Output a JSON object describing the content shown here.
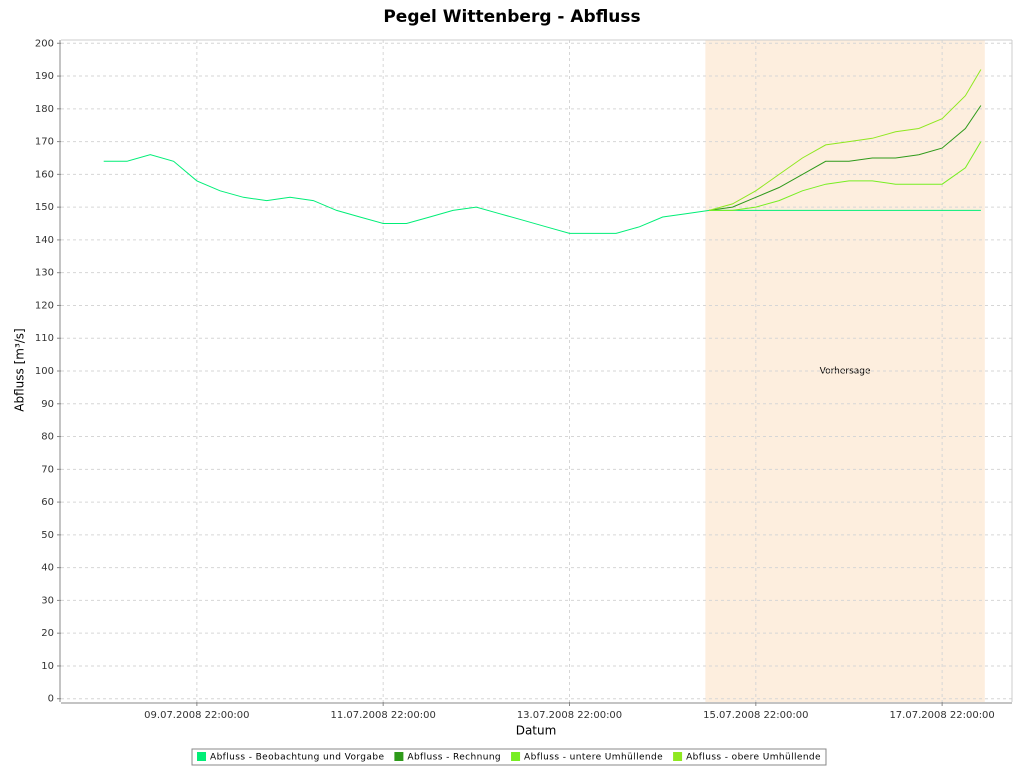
{
  "chart_data": {
    "type": "line",
    "title": "Pegel Wittenberg - Abfluss",
    "x_label": "Datum",
    "y_label": "Abfluss [m³/s]",
    "xlim": [
      "08.07.2008 11:00:00",
      "18.07.2008 16:00:00"
    ],
    "xticks": [
      "09.07.2008 22:00:00",
      "11.07.2008 22:00:00",
      "13.07.2008 22:00:00",
      "15.07.2008 22:00:00",
      "17.07.2008 22:00:00"
    ],
    "ylim": [
      -1,
      201
    ],
    "yticks": [
      0,
      10,
      20,
      30,
      40,
      50,
      60,
      70,
      80,
      90,
      100,
      110,
      120,
      130,
      140,
      150,
      160,
      170,
      180,
      190,
      200
    ],
    "grid": true,
    "legend": "bottom",
    "marker": {
      "label": "Vorhersage",
      "start": "15.07.2008 09:00:00",
      "end": "18.07.2008 09:00:00",
      "color": "#fdeede"
    },
    "series": [
      {
        "name": "Abfluss - Beobachtung und Vorgabe",
        "color": "#00ee77",
        "x": [
          "08.07.2008 22:00:00",
          "09.07.2008 04:00:00",
          "09.07.2008 10:00:00",
          "09.07.2008 16:00:00",
          "09.07.2008 22:00:00",
          "10.07.2008 04:00:00",
          "10.07.2008 10:00:00",
          "10.07.2008 16:00:00",
          "10.07.2008 22:00:00",
          "11.07.2008 04:00:00",
          "11.07.2008 10:00:00",
          "11.07.2008 16:00:00",
          "11.07.2008 22:00:00",
          "12.07.2008 04:00:00",
          "12.07.2008 10:00:00",
          "12.07.2008 16:00:00",
          "12.07.2008 22:00:00",
          "13.07.2008 04:00:00",
          "13.07.2008 10:00:00",
          "13.07.2008 16:00:00",
          "13.07.2008 22:00:00",
          "14.07.2008 04:00:00",
          "14.07.2008 10:00:00",
          "14.07.2008 16:00:00",
          "14.07.2008 22:00:00",
          "15.07.2008 04:00:00",
          "15.07.2008 10:00:00",
          "18.07.2008 08:00:00"
        ],
        "values": [
          164,
          164,
          166,
          164,
          158,
          155,
          153,
          152,
          153,
          152,
          149,
          147,
          145,
          145,
          147,
          149,
          150,
          148,
          146,
          144,
          142,
          142,
          142,
          144,
          147,
          148,
          149,
          149
        ]
      },
      {
        "name": "Abfluss - Rechnung",
        "color": "#2e9a1a",
        "x": [
          "15.07.2008 10:00:00",
          "15.07.2008 16:00:00",
          "15.07.2008 22:00:00",
          "16.07.2008 04:00:00",
          "16.07.2008 10:00:00",
          "16.07.2008 16:00:00",
          "16.07.2008 22:00:00",
          "17.07.2008 04:00:00",
          "17.07.2008 10:00:00",
          "17.07.2008 16:00:00",
          "17.07.2008 22:00:00",
          "18.07.2008 04:00:00",
          "18.07.2008 08:00:00"
        ],
        "values": [
          149,
          150,
          153,
          156,
          160,
          164,
          164,
          165,
          165,
          166,
          168,
          174,
          181
        ]
      },
      {
        "name": "Abfluss - untere Umhüllende",
        "color": "#77ee22",
        "x": [
          "15.07.2008 10:00:00",
          "15.07.2008 16:00:00",
          "15.07.2008 22:00:00",
          "16.07.2008 04:00:00",
          "16.07.2008 10:00:00",
          "16.07.2008 16:00:00",
          "16.07.2008 22:00:00",
          "17.07.2008 04:00:00",
          "17.07.2008 10:00:00",
          "17.07.2008 16:00:00",
          "17.07.2008 22:00:00",
          "18.07.2008 04:00:00",
          "18.07.2008 08:00:00"
        ],
        "values": [
          149,
          149,
          150,
          152,
          155,
          157,
          158,
          158,
          157,
          157,
          157,
          162,
          170
        ]
      },
      {
        "name": "Abfluss - obere Umhüllende",
        "color": "#8fe820",
        "x": [
          "15.07.2008 10:00:00",
          "15.07.2008 16:00:00",
          "15.07.2008 22:00:00",
          "16.07.2008 04:00:00",
          "16.07.2008 10:00:00",
          "16.07.2008 16:00:00",
          "16.07.2008 22:00:00",
          "17.07.2008 04:00:00",
          "17.07.2008 10:00:00",
          "17.07.2008 16:00:00",
          "17.07.2008 22:00:00",
          "18.07.2008 04:00:00",
          "18.07.2008 08:00:00"
        ],
        "values": [
          149,
          151,
          155,
          160,
          165,
          169,
          170,
          171,
          173,
          174,
          177,
          184,
          192
        ]
      }
    ]
  }
}
